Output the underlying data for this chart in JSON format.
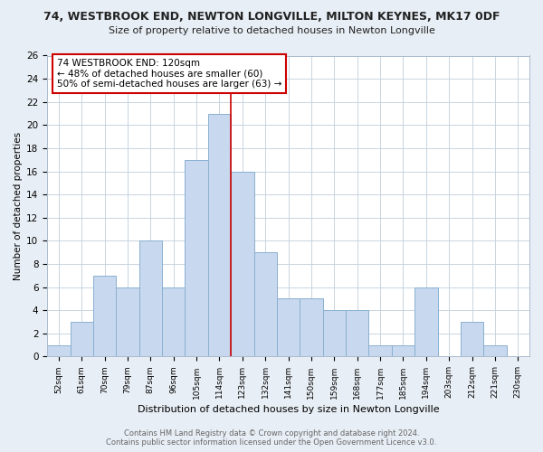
{
  "title": "74, WESTBROOK END, NEWTON LONGVILLE, MILTON KEYNES, MK17 0DF",
  "subtitle": "Size of property relative to detached houses in Newton Longville",
  "xlabel": "Distribution of detached houses by size in Newton Longville",
  "ylabel": "Number of detached properties",
  "footer_line1": "Contains HM Land Registry data © Crown copyright and database right 2024.",
  "footer_line2": "Contains public sector information licensed under the Open Government Licence v3.0.",
  "bar_labels": [
    "52sqm",
    "61sqm",
    "70sqm",
    "79sqm",
    "87sqm",
    "96sqm",
    "105sqm",
    "114sqm",
    "123sqm",
    "132sqm",
    "141sqm",
    "150sqm",
    "159sqm",
    "168sqm",
    "177sqm",
    "185sqm",
    "194sqm",
    "203sqm",
    "212sqm",
    "221sqm",
    "230sqm"
  ],
  "bar_values": [
    1,
    3,
    7,
    6,
    10,
    6,
    17,
    21,
    16,
    9,
    5,
    5,
    4,
    4,
    1,
    1,
    6,
    0,
    3,
    1,
    0
  ],
  "bar_color": "#c8d8ee",
  "bar_edge_color": "#8ab0d0",
  "marker_bin_index": 7,
  "marker_color": "#cc0000",
  "ylim": [
    0,
    26
  ],
  "yticks": [
    0,
    2,
    4,
    6,
    8,
    10,
    12,
    14,
    16,
    18,
    20,
    22,
    24,
    26
  ],
  "annotation_title": "74 WESTBROOK END: 120sqm",
  "annotation_line2": "← 48% of detached houses are smaller (60)",
  "annotation_line3": "50% of semi-detached houses are larger (63) →",
  "annotation_box_facecolor": "#ffffff",
  "annotation_box_edgecolor": "#cc0000",
  "bg_color": "#e8eef5",
  "plot_bg_color": "#ffffff",
  "grid_color": "#c8d4e0",
  "title_color": "#222222",
  "footer_color": "#666666"
}
